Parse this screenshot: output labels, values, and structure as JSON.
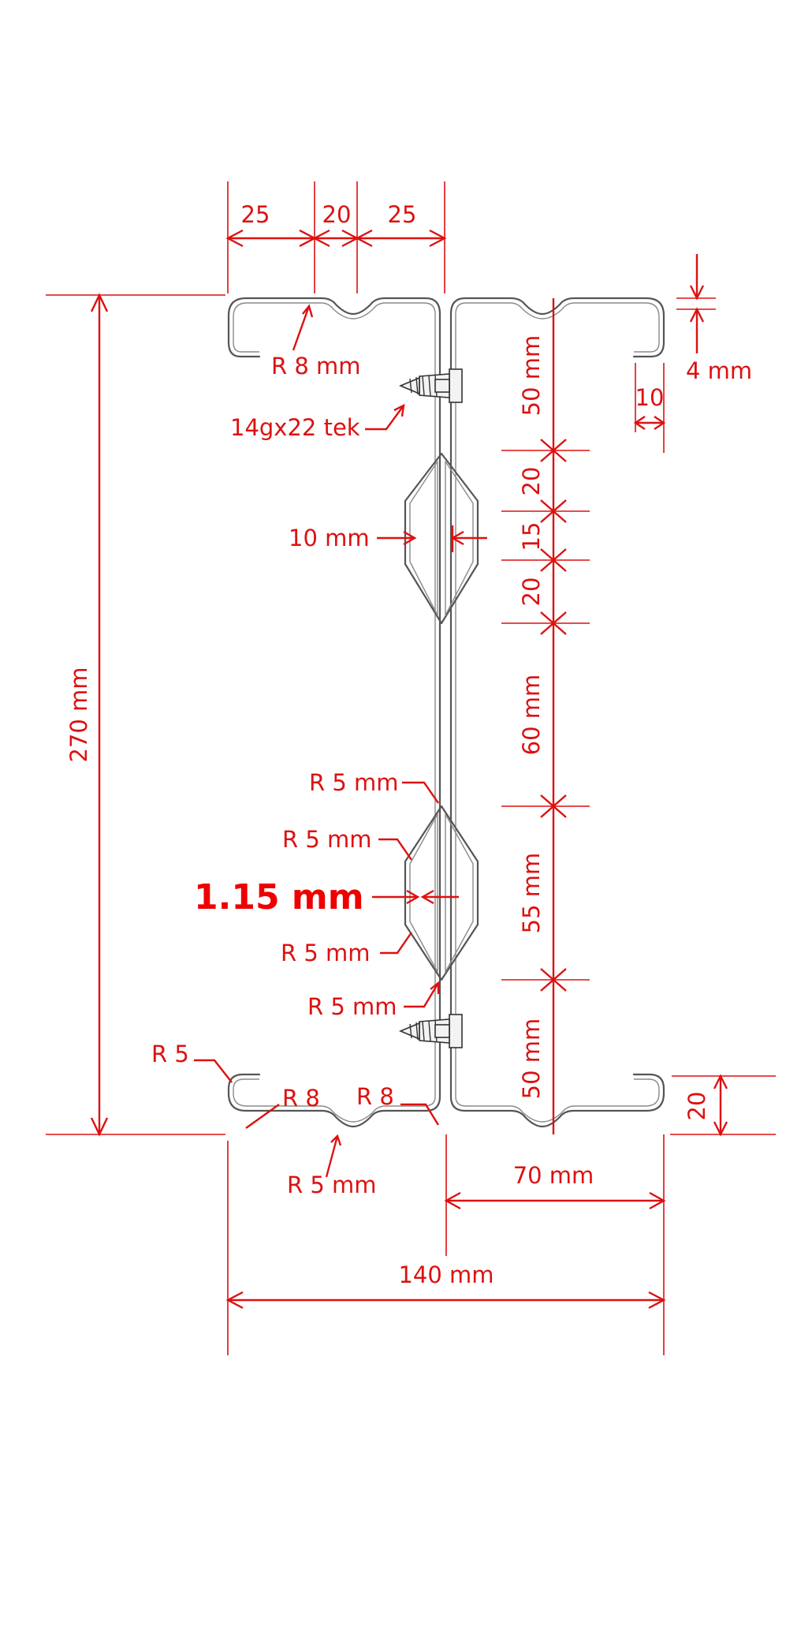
{
  "colors": {
    "dimension": "#dd1111",
    "profile": "#555555",
    "highlight": "#ee0000"
  },
  "labels": {
    "top_25_left": "25",
    "top_20": "20",
    "top_25_right": "25",
    "r8_top": "R 8 mm",
    "screw_top": "14gx22 tek",
    "dim_50_top": "50 mm",
    "dim_4": "4 mm",
    "dim_10_lip": "10",
    "dim_20_a": "20",
    "dim_15": "15",
    "dim_20_b": "20",
    "dim_10mm": "10 mm",
    "height_270": "270 mm",
    "dim_60": "60 mm",
    "r5_1": "R 5 mm",
    "r5_2": "R 5 mm",
    "thickness": "1.15 mm",
    "dim_55": "55 mm",
    "r5_3": "R 5 mm",
    "r5_4": "R 5 mm",
    "dim_50_bottom": "50 mm",
    "r5_lip": "R 5",
    "r8_left": "R 8",
    "r8_right": "R 8",
    "dim_20_lip": "20",
    "r5_bottom": "R 5 mm",
    "dim_70": "70 mm",
    "dim_140": "140 mm"
  },
  "icons": {
    "screw_top": "tek-screw-icon",
    "screw_bottom": "tek-screw-icon"
  }
}
